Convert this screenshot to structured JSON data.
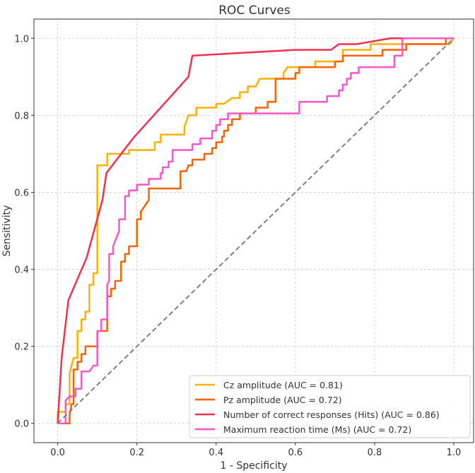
{
  "chart_data": {
    "type": "line",
    "title": "ROC Curves",
    "xlabel": "1 - Specificity",
    "ylabel": "Sensitivity",
    "xlim": [
      -0.06,
      1.05
    ],
    "ylim": [
      -0.05,
      1.05
    ],
    "xticks": [
      "0.0",
      "0.2",
      "0.4",
      "0.6",
      "0.8",
      "1.0"
    ],
    "yticks": [
      "0.0",
      "0.2",
      "0.4",
      "0.6",
      "0.8",
      "1.0"
    ],
    "grid": true,
    "legend_position": "bottom-right",
    "diagonal": {
      "x": [
        0,
        1
      ],
      "y": [
        0,
        1
      ],
      "color": "#808080",
      "style": "dashed"
    },
    "series": [
      {
        "name": "Cz amplitude (AUC = 0.81)",
        "color": "#FFB000",
        "points": [
          [
            0,
            0
          ],
          [
            0,
            0.03
          ],
          [
            0.02,
            0.03
          ],
          [
            0.02,
            0.05
          ],
          [
            0.03,
            0.05
          ],
          [
            0.03,
            0.13
          ],
          [
            0.04,
            0.17
          ],
          [
            0.05,
            0.17
          ],
          [
            0.05,
            0.24
          ],
          [
            0.06,
            0.24
          ],
          [
            0.06,
            0.27
          ],
          [
            0.07,
            0.27
          ],
          [
            0.07,
            0.29
          ],
          [
            0.08,
            0.29
          ],
          [
            0.08,
            0.36
          ],
          [
            0.09,
            0.36
          ],
          [
            0.09,
            0.39
          ],
          [
            0.1,
            0.39
          ],
          [
            0.1,
            0.67
          ],
          [
            0.125,
            0.67
          ],
          [
            0.125,
            0.7
          ],
          [
            0.18,
            0.7
          ],
          [
            0.18,
            0.71
          ],
          [
            0.245,
            0.71
          ],
          [
            0.245,
            0.73
          ],
          [
            0.26,
            0.73
          ],
          [
            0.26,
            0.75
          ],
          [
            0.32,
            0.75
          ],
          [
            0.32,
            0.77
          ],
          [
            0.33,
            0.8
          ],
          [
            0.35,
            0.8
          ],
          [
            0.35,
            0.82
          ],
          [
            0.4,
            0.82
          ],
          [
            0.4,
            0.83
          ],
          [
            0.42,
            0.83
          ],
          [
            0.44,
            0.845
          ],
          [
            0.46,
            0.845
          ],
          [
            0.46,
            0.86
          ],
          [
            0.48,
            0.86
          ],
          [
            0.48,
            0.875
          ],
          [
            0.5,
            0.875
          ],
          [
            0.51,
            0.895
          ],
          [
            0.57,
            0.895
          ],
          [
            0.57,
            0.91
          ],
          [
            0.58,
            0.925
          ],
          [
            0.65,
            0.925
          ],
          [
            0.65,
            0.94
          ],
          [
            0.72,
            0.94
          ],
          [
            0.72,
            0.97
          ],
          [
            0.79,
            0.97
          ],
          [
            0.79,
            0.985
          ],
          [
            0.99,
            0.985
          ],
          [
            1,
            1
          ]
        ]
      },
      {
        "name": "Pz amplitude (AUC = 0.72)",
        "color": "#FE6100",
        "points": [
          [
            0,
            0
          ],
          [
            0.03,
            0
          ],
          [
            0.03,
            0.02
          ],
          [
            0.035,
            0.05
          ],
          [
            0.04,
            0.05
          ],
          [
            0.04,
            0.14
          ],
          [
            0.05,
            0.14
          ],
          [
            0.05,
            0.16
          ],
          [
            0.06,
            0.16
          ],
          [
            0.06,
            0.18
          ],
          [
            0.07,
            0.18
          ],
          [
            0.07,
            0.2
          ],
          [
            0.1,
            0.2
          ],
          [
            0.1,
            0.24
          ],
          [
            0.125,
            0.24
          ],
          [
            0.125,
            0.33
          ],
          [
            0.135,
            0.33
          ],
          [
            0.135,
            0.35
          ],
          [
            0.145,
            0.35
          ],
          [
            0.145,
            0.37
          ],
          [
            0.16,
            0.37
          ],
          [
            0.16,
            0.42
          ],
          [
            0.17,
            0.42
          ],
          [
            0.17,
            0.44
          ],
          [
            0.18,
            0.44
          ],
          [
            0.18,
            0.46
          ],
          [
            0.2,
            0.46
          ],
          [
            0.2,
            0.53
          ],
          [
            0.21,
            0.53
          ],
          [
            0.21,
            0.55
          ],
          [
            0.23,
            0.58
          ],
          [
            0.23,
            0.61
          ],
          [
            0.31,
            0.61
          ],
          [
            0.31,
            0.655
          ],
          [
            0.325,
            0.655
          ],
          [
            0.33,
            0.67
          ],
          [
            0.34,
            0.67
          ],
          [
            0.34,
            0.685
          ],
          [
            0.37,
            0.685
          ],
          [
            0.37,
            0.7
          ],
          [
            0.39,
            0.7
          ],
          [
            0.39,
            0.715
          ],
          [
            0.4,
            0.715
          ],
          [
            0.4,
            0.73
          ],
          [
            0.415,
            0.73
          ],
          [
            0.415,
            0.745
          ],
          [
            0.42,
            0.745
          ],
          [
            0.42,
            0.76
          ],
          [
            0.43,
            0.76
          ],
          [
            0.43,
            0.775
          ],
          [
            0.44,
            0.775
          ],
          [
            0.44,
            0.79
          ],
          [
            0.46,
            0.79
          ],
          [
            0.46,
            0.805
          ],
          [
            0.5,
            0.805
          ],
          [
            0.5,
            0.82
          ],
          [
            0.53,
            0.82
          ],
          [
            0.53,
            0.835
          ],
          [
            0.55,
            0.835
          ],
          [
            0.55,
            0.895
          ],
          [
            0.6,
            0.895
          ],
          [
            0.6,
            0.91
          ],
          [
            0.61,
            0.91
          ],
          [
            0.61,
            0.925
          ],
          [
            0.7,
            0.925
          ],
          [
            0.7,
            0.94
          ],
          [
            0.72,
            0.94
          ],
          [
            0.72,
            0.955
          ],
          [
            0.82,
            0.955
          ],
          [
            0.82,
            0.97
          ],
          [
            0.88,
            0.97
          ],
          [
            0.88,
            0.985
          ],
          [
            0.98,
            0.985
          ],
          [
            0.98,
            1
          ],
          [
            1,
            1
          ]
        ]
      },
      {
        "name": "Number of correct responses (Hits) (AUC = 0.86)",
        "color": "#F5304F",
        "points": [
          [
            0,
            0
          ],
          [
            0.01,
            0.17
          ],
          [
            0.027,
            0.32
          ],
          [
            0.073,
            0.43
          ],
          [
            0.113,
            0.58
          ],
          [
            0.123,
            0.65
          ],
          [
            0.19,
            0.74
          ],
          [
            0.33,
            0.9
          ],
          [
            0.34,
            0.955
          ],
          [
            0.6,
            0.97
          ],
          [
            0.69,
            0.97
          ],
          [
            0.71,
            0.985
          ],
          [
            0.755,
            0.985
          ],
          [
            0.84,
            1
          ],
          [
            1,
            1
          ]
        ]
      },
      {
        "name": "Maximum reaction time (Ms) (AUC = 0.72)",
        "color": "#FF55CC",
        "points": [
          [
            0,
            0
          ],
          [
            0.02,
            0
          ],
          [
            0.02,
            0.06
          ],
          [
            0.03,
            0.07
          ],
          [
            0.045,
            0.07
          ],
          [
            0.045,
            0.09
          ],
          [
            0.06,
            0.09
          ],
          [
            0.06,
            0.135
          ],
          [
            0.08,
            0.135
          ],
          [
            0.09,
            0.15
          ],
          [
            0.1,
            0.15
          ],
          [
            0.1,
            0.24
          ],
          [
            0.11,
            0.24
          ],
          [
            0.11,
            0.27
          ],
          [
            0.125,
            0.27
          ],
          [
            0.125,
            0.36
          ],
          [
            0.13,
            0.37
          ],
          [
            0.13,
            0.44
          ],
          [
            0.14,
            0.44
          ],
          [
            0.14,
            0.46
          ],
          [
            0.155,
            0.5
          ],
          [
            0.155,
            0.53
          ],
          [
            0.17,
            0.53
          ],
          [
            0.17,
            0.59
          ],
          [
            0.18,
            0.59
          ],
          [
            0.18,
            0.605
          ],
          [
            0.2,
            0.605
          ],
          [
            0.2,
            0.62
          ],
          [
            0.23,
            0.62
          ],
          [
            0.23,
            0.635
          ],
          [
            0.26,
            0.635
          ],
          [
            0.26,
            0.65
          ],
          [
            0.265,
            0.65
          ],
          [
            0.265,
            0.665
          ],
          [
            0.28,
            0.665
          ],
          [
            0.28,
            0.68
          ],
          [
            0.29,
            0.68
          ],
          [
            0.29,
            0.71
          ],
          [
            0.34,
            0.71
          ],
          [
            0.34,
            0.725
          ],
          [
            0.36,
            0.725
          ],
          [
            0.36,
            0.74
          ],
          [
            0.39,
            0.74
          ],
          [
            0.39,
            0.76
          ],
          [
            0.4,
            0.76
          ],
          [
            0.4,
            0.775
          ],
          [
            0.41,
            0.775
          ],
          [
            0.41,
            0.79
          ],
          [
            0.43,
            0.79
          ],
          [
            0.43,
            0.805
          ],
          [
            0.61,
            0.805
          ],
          [
            0.61,
            0.835
          ],
          [
            0.68,
            0.835
          ],
          [
            0.68,
            0.85
          ],
          [
            0.71,
            0.85
          ],
          [
            0.71,
            0.865
          ],
          [
            0.72,
            0.865
          ],
          [
            0.72,
            0.88
          ],
          [
            0.73,
            0.88
          ],
          [
            0.73,
            0.895
          ],
          [
            0.74,
            0.895
          ],
          [
            0.74,
            0.91
          ],
          [
            0.76,
            0.91
          ],
          [
            0.76,
            0.925
          ],
          [
            0.85,
            0.925
          ],
          [
            0.85,
            0.955
          ],
          [
            0.87,
            0.955
          ],
          [
            0.87,
            1
          ],
          [
            1,
            1
          ]
        ]
      }
    ]
  }
}
